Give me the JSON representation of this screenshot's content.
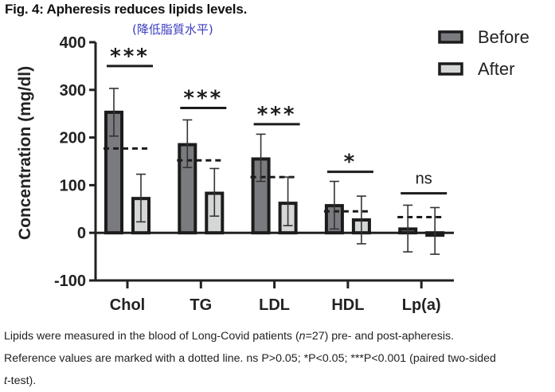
{
  "figure": {
    "title": "Fig. 4: Apheresis reduces lipids levels.",
    "subtitle": "(降低脂質水平)",
    "caption_line1_pre": "Lipids were measured in the blood of Long-Covid patients (",
    "caption_line1_n": "n",
    "caption_line1_post": "=27) pre- and post-apheresis.",
    "caption_line2": "Reference values are marked with a dotted line. ns P>0.05; *P<0.05; ***P<0.001 (paired two-sided",
    "caption_line3_t": "t",
    "caption_line3_post": "-test)."
  },
  "chart_data": {
    "type": "bar",
    "title": "",
    "xlabel": "",
    "ylabel": "Concentration (mg/dl)",
    "ylim": [
      -100,
      400
    ],
    "yticks": [
      -100,
      0,
      100,
      200,
      300,
      400
    ],
    "ytick_labels": [
      "-100",
      "0",
      "100",
      "200",
      "300",
      "400"
    ],
    "grid": false,
    "legend_position": "top-right",
    "categories": [
      "Chol",
      "TG",
      "LDL",
      "HDL",
      "Lp(a)"
    ],
    "series": [
      {
        "name": "Before",
        "color": "#7a7b7f",
        "values": [
          253,
          185,
          155,
          57,
          8
        ],
        "error_low": [
          203,
          137,
          108,
          8,
          -40
        ],
        "error_high": [
          303,
          237,
          207,
          108,
          58
        ]
      },
      {
        "name": "After",
        "color": "#d5d7d7",
        "values": [
          72,
          83,
          62,
          27,
          -3
        ],
        "error_low": [
          23,
          35,
          15,
          -23,
          -45
        ],
        "error_high": [
          123,
          135,
          117,
          77,
          53
        ]
      }
    ],
    "reference_values": [
      177,
      152,
      117,
      45,
      33
    ],
    "significance": [
      "***",
      "***",
      "***",
      "*",
      "ns"
    ],
    "significance_levels": [
      350,
      262,
      228,
      128,
      83
    ],
    "colors": {
      "border": "#1c1c1c",
      "axis": "#222222"
    }
  }
}
